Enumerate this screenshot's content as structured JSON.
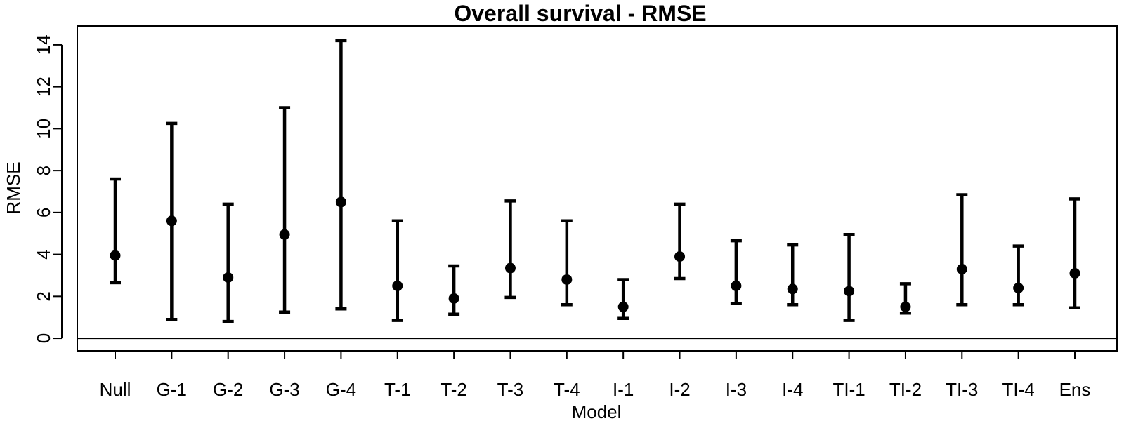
{
  "chart_data": {
    "type": "errorbar",
    "title": "Overall survival - RMSE",
    "xlabel": "Model",
    "ylabel": "RMSE",
    "ylim": [
      -0.6,
      14.9
    ],
    "y_ticks": [
      0,
      2,
      4,
      6,
      8,
      10,
      12,
      14
    ],
    "reference_line": 0,
    "categories": [
      "Null",
      "G-1",
      "G-2",
      "G-3",
      "G-4",
      "T-1",
      "T-2",
      "T-3",
      "T-4",
      "I-1",
      "I-2",
      "I-3",
      "I-4",
      "TI-1",
      "TI-2",
      "TI-3",
      "TI-4",
      "Ens"
    ],
    "values": [
      3.95,
      5.6,
      2.9,
      4.95,
      6.5,
      2.5,
      1.9,
      3.35,
      2.8,
      1.5,
      3.9,
      2.5,
      2.35,
      2.25,
      1.5,
      3.3,
      2.4,
      3.1
    ],
    "lower": [
      2.65,
      0.9,
      0.8,
      1.25,
      1.4,
      0.85,
      1.15,
      1.95,
      1.6,
      0.95,
      2.85,
      1.65,
      1.6,
      0.85,
      1.2,
      1.6,
      1.6,
      1.45
    ],
    "upper": [
      7.6,
      10.25,
      6.4,
      11.0,
      14.2,
      5.6,
      3.45,
      6.55,
      5.6,
      2.8,
      6.4,
      4.65,
      4.45,
      4.95,
      2.6,
      6.85,
      4.4,
      6.65
    ],
    "grid": false,
    "color": "#000000"
  }
}
